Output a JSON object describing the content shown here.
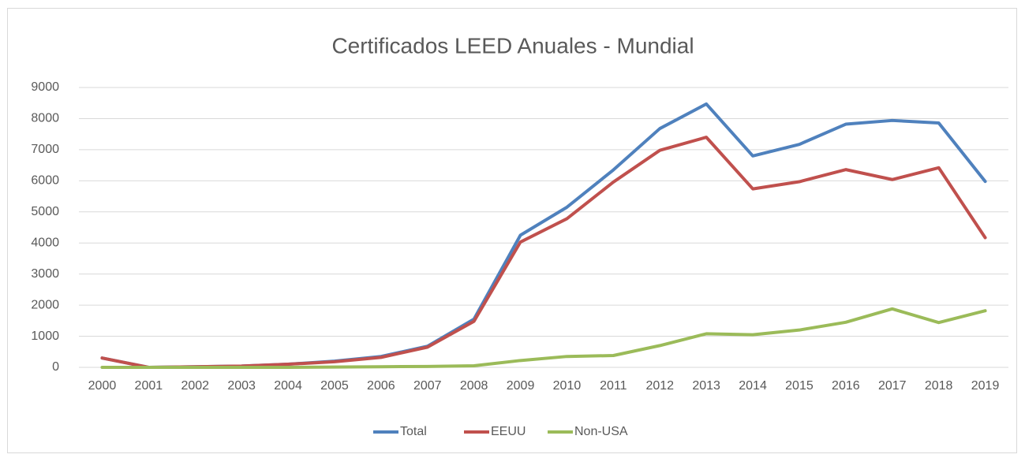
{
  "chart_data": {
    "type": "line",
    "title": "Certificados LEED Anuales - Mundial",
    "categories": [
      "2000",
      "2001",
      "2002",
      "2003",
      "2004",
      "2005",
      "2006",
      "2007",
      "2008",
      "2009",
      "2010",
      "2011",
      "2012",
      "2013",
      "2014",
      "2015",
      "2016",
      "2017",
      "2018",
      "2019"
    ],
    "series": [
      {
        "name": "Total",
        "color": "#4f81bd",
        "values": [
          300,
          0,
          20,
          40,
          100,
          200,
          350,
          680,
          1550,
          4250,
          5150,
          6350,
          7680,
          8470,
          6800,
          7170,
          7820,
          7940,
          7860,
          5980
        ]
      },
      {
        "name": "EEUU",
        "color": "#c0504d",
        "values": [
          300,
          0,
          20,
          40,
          100,
          180,
          320,
          650,
          1480,
          4030,
          4780,
          5960,
          6980,
          7400,
          5740,
          5970,
          6360,
          6040,
          6420,
          4170
        ]
      },
      {
        "name": "Non-USA",
        "color": "#9bbb59",
        "values": [
          0,
          0,
          0,
          0,
          0,
          10,
          20,
          30,
          50,
          220,
          350,
          380,
          700,
          1080,
          1050,
          1200,
          1450,
          1880,
          1440,
          1820
        ]
      }
    ],
    "ylim": [
      0,
      9000
    ],
    "yticks": [
      0,
      1000,
      2000,
      3000,
      4000,
      5000,
      6000,
      7000,
      8000,
      9000
    ],
    "grid": true,
    "legend": "bottom"
  }
}
